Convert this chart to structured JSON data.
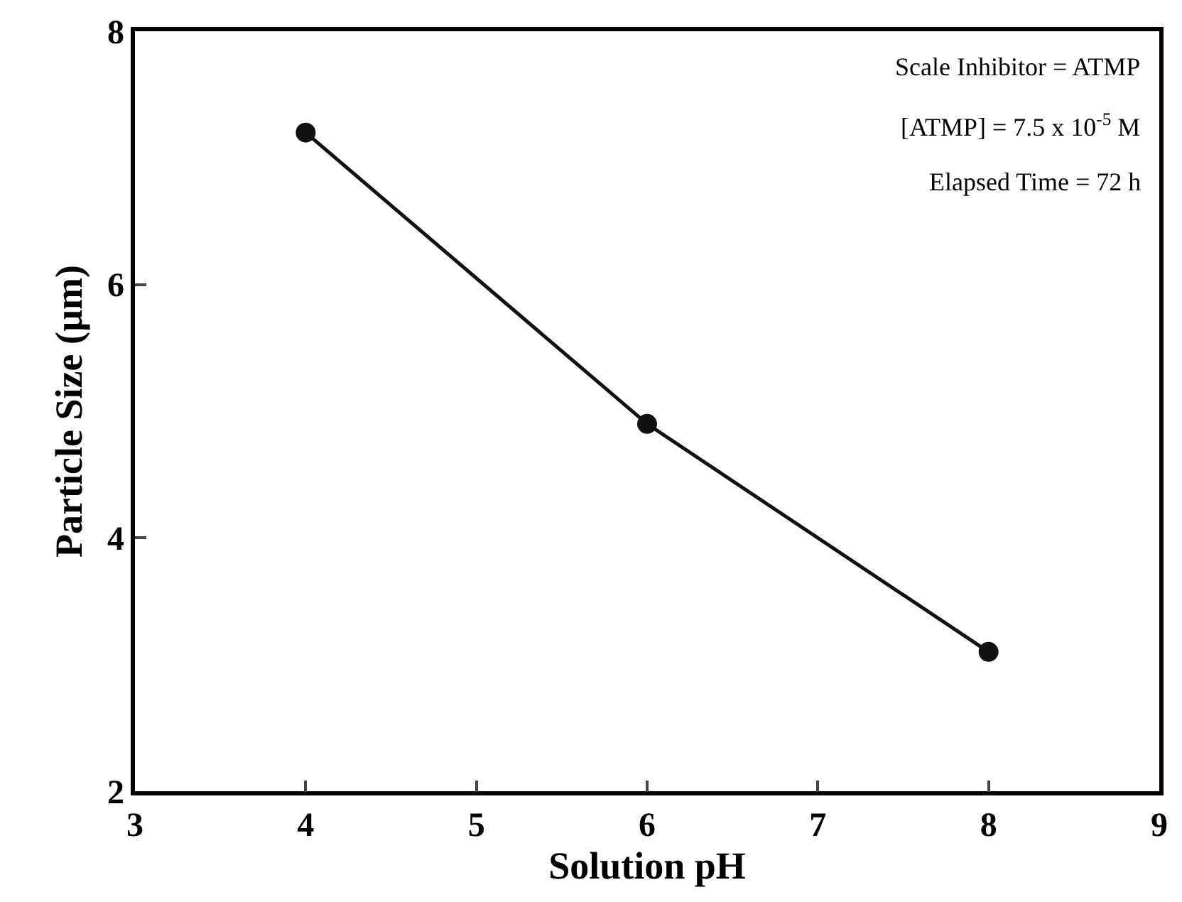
{
  "chart_data": {
    "type": "line",
    "xlabel": "Solution pH",
    "ylabel": "Particle Size (µm)",
    "x": [
      4,
      6,
      8
    ],
    "series": [
      {
        "color": "#111111",
        "values": [
          7.2,
          4.9,
          3.1
        ]
      }
    ],
    "marker": "circle",
    "line_style": "solid",
    "xlim": [
      3,
      9
    ],
    "xticks": [
      3,
      4,
      5,
      6,
      7,
      8,
      9
    ],
    "ylim": [
      2,
      8
    ],
    "yticks": [
      2,
      4,
      6,
      8
    ],
    "annotations": [
      "Scale Inhibitor = ATMP",
      "[ATMP] = 7.5 x 10$^{-5}$ M",
      "Elapsed Time = 72 h"
    ]
  }
}
